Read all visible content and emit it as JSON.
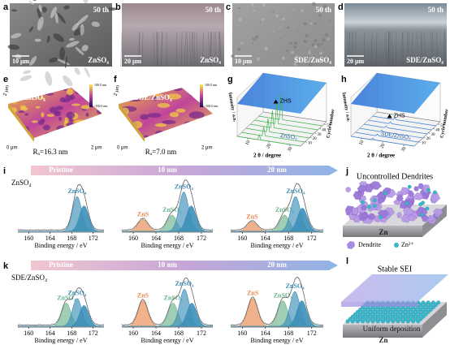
{
  "sem": [
    {
      "label": "a",
      "cycle": "50 th",
      "scale": "10 μm",
      "electrolyte": "ZnSO₄"
    },
    {
      "label": "b",
      "cycle": "50 th",
      "scale": "20 μm",
      "electrolyte": "ZnSO₄"
    },
    {
      "label": "c",
      "cycle": "50 th",
      "scale": "10 μm",
      "electrolyte": "SDE/ZnSO₄"
    },
    {
      "label": "d",
      "cycle": "50 th",
      "scale": "20 μm",
      "electrolyte": "SDE/ZnSO₄"
    }
  ],
  "afm": [
    {
      "label": "e",
      "electrolyte": "ZnSO₄",
      "roughness": "Rₐ=16.3 nm",
      "origin": "0 μm",
      "x_end": "2 μm",
      "y_end": "2 μm",
      "colorbar_max": "100.0 nm",
      "colorbar_min": "-100.0 nm"
    },
    {
      "label": "f",
      "electrolyte": "SDE/ZnSO₄",
      "roughness": "Rₐ=7.0 nm",
      "origin": "0 μm",
      "x_end": "2 μm",
      "y_end": "2 μm",
      "colorbar_max": "100.0 nm",
      "colorbar_min": "-100.0 nm"
    }
  ],
  "xrd": [
    {
      "label": "g",
      "electrolyte": "ZnSO₄",
      "peak_label": "ZHS",
      "xlabel": "2 θ / degree",
      "ylabel": "Intensity / a.u.",
      "zlabel": "Cycle number",
      "xlim": [
        5,
        35
      ],
      "xticks": [
        10,
        20,
        30
      ],
      "zlim": [
        0,
        55
      ],
      "zticks": [
        10,
        20,
        30,
        40,
        50
      ]
    },
    {
      "label": "h",
      "electrolyte": "SDE/ZnSO₄",
      "peak_label": "ZHS",
      "xlabel": "2 θ / degree",
      "ylabel": "Intensity / a.u.",
      "zlabel": "Cycle number",
      "xlim": [
        5,
        35
      ],
      "xticks": [
        10,
        20,
        30
      ],
      "zlim": [
        0,
        55
      ],
      "zticks": [
        10,
        20,
        30,
        40,
        50
      ]
    }
  ],
  "xps": [
    {
      "label": "i",
      "electrolyte": "ZnSO₄",
      "stages": [
        "Pristine",
        "10 nm",
        "20 nm"
      ],
      "plots": [
        {
          "xlim": [
            158,
            174
          ],
          "xticks": [
            160,
            164,
            168,
            172
          ],
          "xlabel": "Binding energy / eV",
          "species": [
            {
              "name": "ZnSO₄",
              "color": "#3c8fb8",
              "components": [
                {
                  "center": 169.0,
                  "height": 0.75
                },
                {
                  "center": 170.3,
                  "height": 0.55
                }
              ]
            }
          ]
        },
        {
          "xlim": [
            158,
            174
          ],
          "xticks": [
            160,
            164,
            168,
            172
          ],
          "xlabel": "Binding energy / eV",
          "species": [
            {
              "name": "ZnS",
              "color": "#e8894f",
              "components": [
                {
                  "center": 161.7,
                  "height": 0.25
                }
              ]
            },
            {
              "name": "ZnSO₃",
              "color": "#6bb38e",
              "components": [
                {
                  "center": 166.8,
                  "height": 0.35
                }
              ]
            },
            {
              "name": "ZnSO₄",
              "color": "#3c8fb8",
              "components": [
                {
                  "center": 168.9,
                  "height": 0.85
                },
                {
                  "center": 170.2,
                  "height": 0.55
                }
              ]
            }
          ]
        },
        {
          "xlim": [
            158,
            174
          ],
          "xticks": [
            160,
            164,
            168,
            172
          ],
          "xlabel": "Binding energy / eV",
          "species": [
            {
              "name": "ZnS",
              "color": "#e8894f",
              "components": [
                {
                  "center": 161.7,
                  "height": 0.2
                }
              ]
            },
            {
              "name": "ZnSO₃",
              "color": "#6bb38e",
              "components": [
                {
                  "center": 167.3,
                  "height": 0.35
                }
              ]
            },
            {
              "name": "ZnSO₄",
              "color": "#3c8fb8",
              "components": [
                {
                  "center": 169.2,
                  "height": 0.75
                },
                {
                  "center": 170.4,
                  "height": 0.5
                }
              ]
            }
          ]
        }
      ]
    },
    {
      "label": "k",
      "electrolyte": "SDE/ZnSO₄",
      "stages": [
        "Pristine",
        "10 nm",
        "20 nm"
      ],
      "plots": [
        {
          "xlim": [
            158,
            174
          ],
          "xticks": [
            160,
            164,
            168,
            172
          ],
          "xlabel": "Binding energy / eV",
          "species": [
            {
              "name": "ZnSO₃",
              "color": "#6bb38e",
              "components": [
                {
                  "center": 167.0,
                  "height": 0.5
                }
              ]
            },
            {
              "name": "ZnSO₄",
              "color": "#3c8fb8",
              "components": [
                {
                  "center": 169.0,
                  "height": 0.6
                },
                {
                  "center": 170.3,
                  "height": 0.45
                }
              ]
            }
          ]
        },
        {
          "xlim": [
            158,
            174
          ],
          "xticks": [
            160,
            164,
            168,
            172
          ],
          "xlabel": "Binding energy / eV",
          "species": [
            {
              "name": "ZnS",
              "color": "#e8894f",
              "components": [
                {
                  "center": 161.7,
                  "height": 0.55
                }
              ]
            },
            {
              "name": "ZnSO₃",
              "color": "#6bb38e",
              "components": [
                {
                  "center": 167.0,
                  "height": 0.5
                }
              ]
            },
            {
              "name": "ZnSO₄",
              "color": "#3c8fb8",
              "components": [
                {
                  "center": 169.0,
                  "height": 0.8
                },
                {
                  "center": 170.3,
                  "height": 0.5
                }
              ]
            }
          ]
        },
        {
          "xlim": [
            158,
            174
          ],
          "xticks": [
            160,
            164,
            168,
            172
          ],
          "xlabel": "Binding energy / eV",
          "species": [
            {
              "name": "ZnS",
              "color": "#e8894f",
              "components": [
                {
                  "center": 161.8,
                  "height": 0.6
                }
              ]
            },
            {
              "name": "ZnSO₃",
              "color": "#6bb38e",
              "components": [
                {
                  "center": 167.0,
                  "height": 0.55
                }
              ]
            },
            {
              "name": "ZnSO₄",
              "color": "#3c8fb8",
              "components": [
                {
                  "center": 169.1,
                  "height": 0.75
                },
                {
                  "center": 170.3,
                  "height": 0.55
                }
              ]
            }
          ]
        }
      ]
    }
  ],
  "schematics": [
    {
      "label": "j",
      "title": "Uncontrolled Dendrites",
      "substrate": "Zn",
      "legend": [
        "Dendrite",
        "Zn²⁺"
      ]
    },
    {
      "label": "l",
      "title": "Stable SEI",
      "caption": "Uniform deposition",
      "substrate": "Zn"
    }
  ]
}
